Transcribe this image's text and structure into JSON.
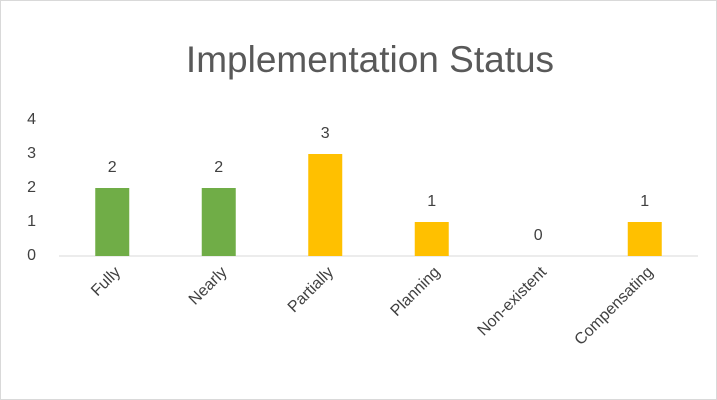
{
  "chart_data": {
    "type": "bar",
    "title": "Implementation Status",
    "categories": [
      "Fully",
      "Nearly",
      "Partially",
      "Planning",
      "Non-existent",
      "Compensating"
    ],
    "values": [
      2,
      2,
      3,
      1,
      0,
      1
    ],
    "colors": [
      "#70ad47",
      "#70ad47",
      "#ffc000",
      "#ffc000",
      "#ffc000",
      "#ffc000"
    ],
    "ylim": [
      0,
      4
    ],
    "yticks": [
      0,
      1,
      2,
      3,
      4
    ],
    "grid": false
  }
}
